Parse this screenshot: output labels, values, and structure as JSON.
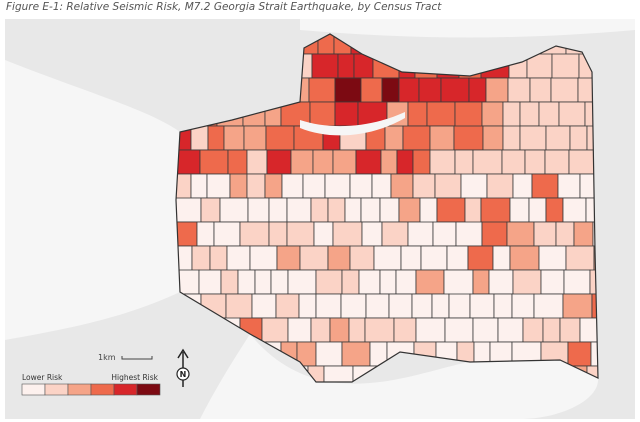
{
  "title": "Figure E-1: Relative Seismic Risk, M7.2 Georgia Strait Earthquake, by Census Tract",
  "scale_bar": {
    "label": "1km"
  },
  "north_arrow": {
    "label": "N"
  },
  "legend": {
    "low_label": "Lower Risk",
    "high_label": "Highest Risk"
  }
}
